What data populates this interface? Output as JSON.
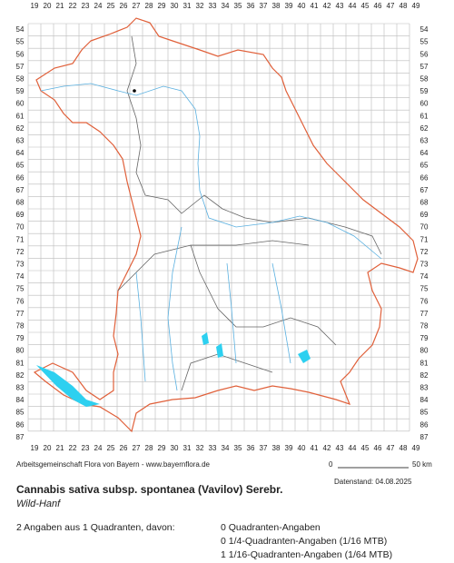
{
  "map": {
    "columns": [
      19,
      20,
      21,
      22,
      23,
      24,
      25,
      26,
      27,
      28,
      29,
      30,
      31,
      32,
      33,
      34,
      35,
      36,
      37,
      38,
      39,
      40,
      41,
      42,
      43,
      44,
      45,
      46,
      47,
      48,
      49
    ],
    "rows": [
      54,
      55,
      56,
      57,
      58,
      59,
      60,
      61,
      62,
      63,
      64,
      65,
      66,
      67,
      68,
      69,
      70,
      71,
      72,
      73,
      74,
      75,
      76,
      77,
      78,
      79,
      80,
      81,
      82,
      83,
      84,
      85,
      86,
      87
    ]
  },
  "footer": {
    "credit": "Arbeitsgemeinschaft Flora von Bayern - www.bayernflora.de",
    "scale_start": "0",
    "scale_end": "50 km",
    "date": "Datenstand: 04.08.2025",
    "title": "Cannabis sativa subsp. spontanea (Vavilov) Serebr.",
    "common_name": "Wild-Hanf",
    "summary": "2 Angaben aus 1 Quadranten, davon:",
    "counts": [
      "0 Quadranten-Angaben",
      "0 1/4-Quadranten-Angaben (1/16 MTB)",
      "1 1/16-Quadranten-Angaben (1/64 MTB)"
    ]
  }
}
